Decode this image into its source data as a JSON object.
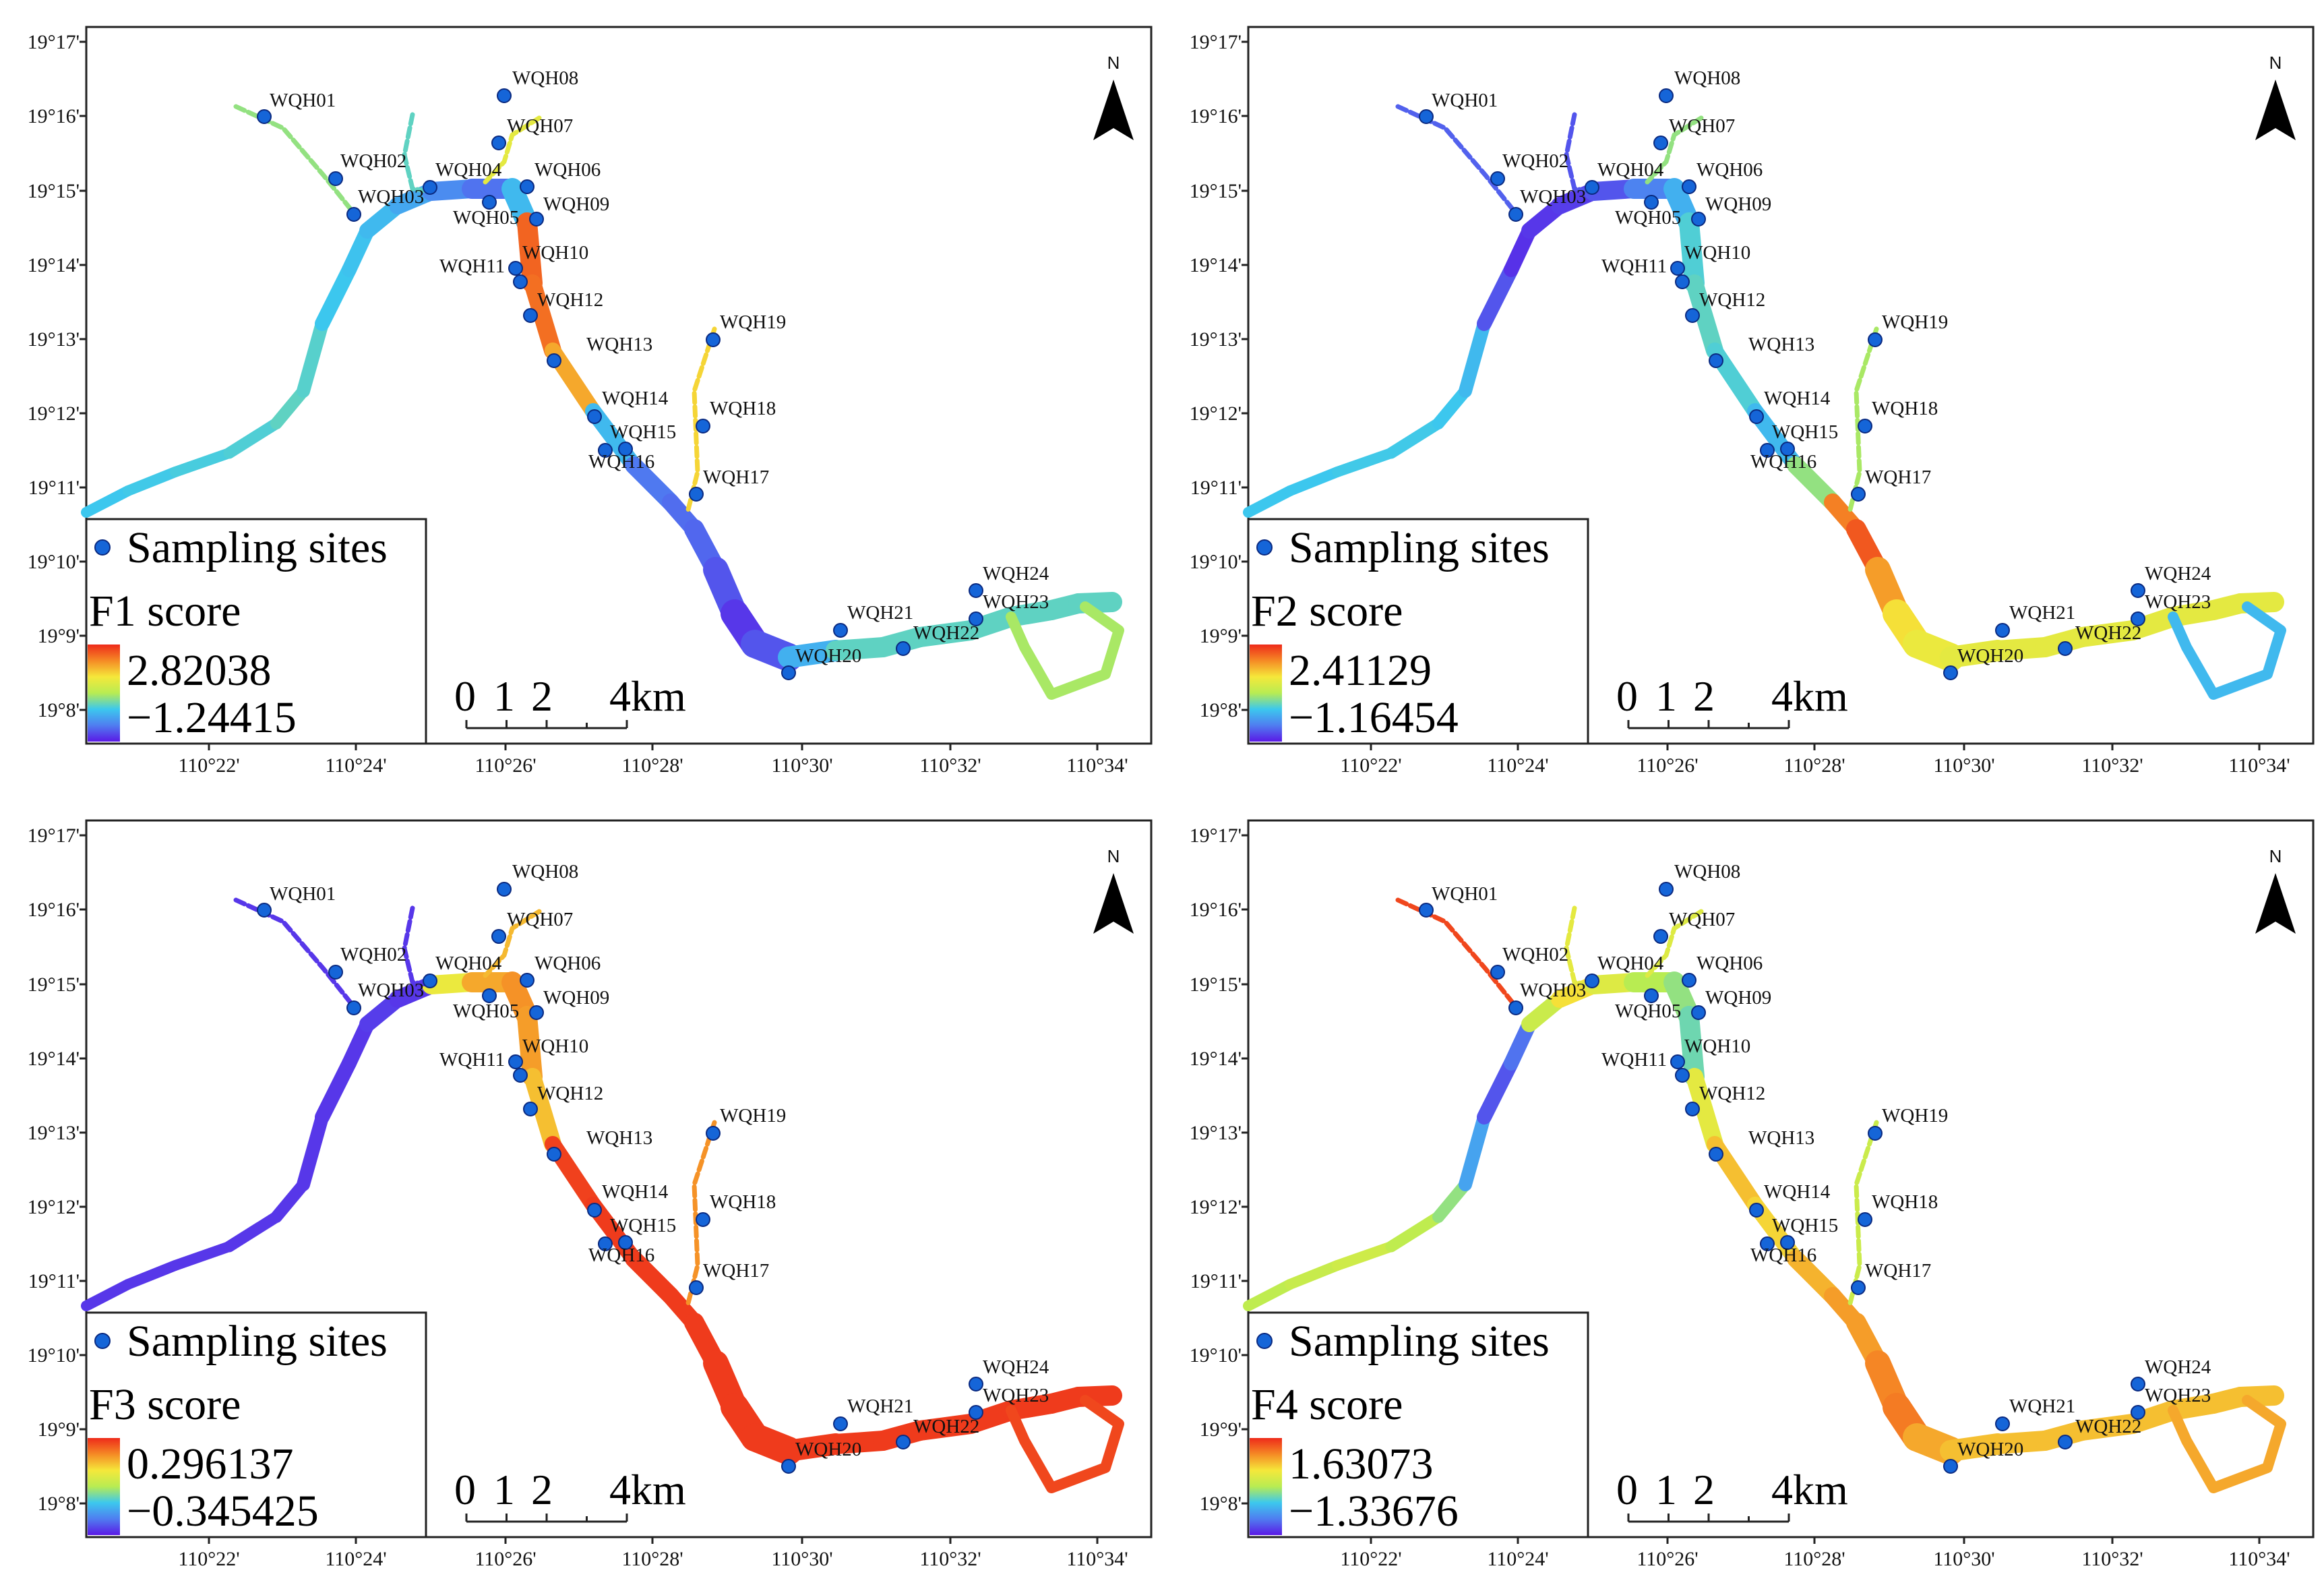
{
  "common": {
    "lat_ticks": [
      "19°17'",
      "19°16'",
      "19°15'",
      "19°14'",
      "19°13'",
      "19°12'",
      "19°11'",
      "19°10'",
      "19°9'",
      "19°8'"
    ],
    "lon_ticks": [
      "110°22'",
      "110°24'",
      "110°26'",
      "110°28'",
      "110°30'",
      "110°32'",
      "110°34'"
    ],
    "legend_sites_label": "Sampling sites",
    "scale_labels": [
      "0",
      "1",
      "2",
      "4km"
    ],
    "north_label": "N",
    "sites": [
      "WQH01",
      "WQH02",
      "WQH03",
      "WQH04",
      "WQH05",
      "WQH06",
      "WQH07",
      "WQH08",
      "WQH09",
      "WQH10",
      "WQH11",
      "WQH12",
      "WQH13",
      "WQH14",
      "WQH15",
      "WQH16",
      "WQH17",
      "WQH18",
      "WQH19",
      "WQH20",
      "WQH21",
      "WQH22",
      "WQH23",
      "WQH24"
    ]
  },
  "colors": {
    "ramp": [
      "#5a19e6",
      "#4f7df0",
      "#3cc8ee",
      "#b8ec52",
      "#f5e83a",
      "#f58a25",
      "#ee2a1a"
    ],
    "site_marker": "#1565d8"
  },
  "panels": [
    {
      "id": "f1",
      "score_label": "F1 score",
      "max": "2.82038",
      "min": "−1.24415",
      "segment_levels": [
        0.33,
        0.34,
        0.35,
        0.36,
        0.38,
        0.37,
        0.33,
        0.32,
        0.3,
        0.26,
        0.2,
        0.15,
        0.3,
        0.9,
        0.88,
        0.78,
        0.3,
        0.16,
        0.14,
        0.13,
        0.1,
        0.05,
        0.1,
        0.28,
        0.38
      ],
      "branch_levels": [
        0.45,
        0.38,
        0.7,
        0.62,
        0.48
      ]
    },
    {
      "id": "f2",
      "score_label": "F2 score",
      "max": "2.41129",
      "min": "−1.16454",
      "segment_levels": [
        0.33,
        0.33,
        0.34,
        0.34,
        0.33,
        0.3,
        0.1,
        0.04,
        0.05,
        0.06,
        0.1,
        0.18,
        0.28,
        0.36,
        0.38,
        0.36,
        0.3,
        0.45,
        0.85,
        0.92,
        0.8,
        0.68,
        0.64,
        0.62,
        0.62
      ],
      "branch_levels": [
        0.12,
        0.1,
        0.48,
        0.45,
        0.3
      ]
    },
    {
      "id": "f3",
      "score_label": "F3 score",
      "max": "0.296137",
      "min": "−0.345425",
      "segment_levels": [
        0.05,
        0.05,
        0.05,
        0.05,
        0.05,
        0.05,
        0.05,
        0.05,
        0.06,
        0.05,
        0.64,
        0.78,
        0.82,
        0.8,
        0.74,
        0.96,
        0.97,
        0.97,
        0.97,
        0.97,
        0.97,
        0.97,
        0.97,
        0.97,
        0.97
      ],
      "branch_levels": [
        0.05,
        0.05,
        0.82,
        0.75,
        0.95
      ]
    },
    {
      "id": "f4",
      "score_label": "F4 score",
      "max": "1.63073",
      "min": "−1.33676",
      "segment_levels": [
        0.52,
        0.54,
        0.56,
        0.52,
        0.45,
        0.25,
        0.1,
        0.15,
        0.55,
        0.68,
        0.6,
        0.5,
        0.45,
        0.4,
        0.62,
        0.74,
        0.7,
        0.76,
        0.8,
        0.8,
        0.84,
        0.86,
        0.78,
        0.74,
        0.74
      ],
      "branch_levels": [
        0.95,
        0.62,
        0.55,
        0.6,
        0.78
      ]
    }
  ]
}
